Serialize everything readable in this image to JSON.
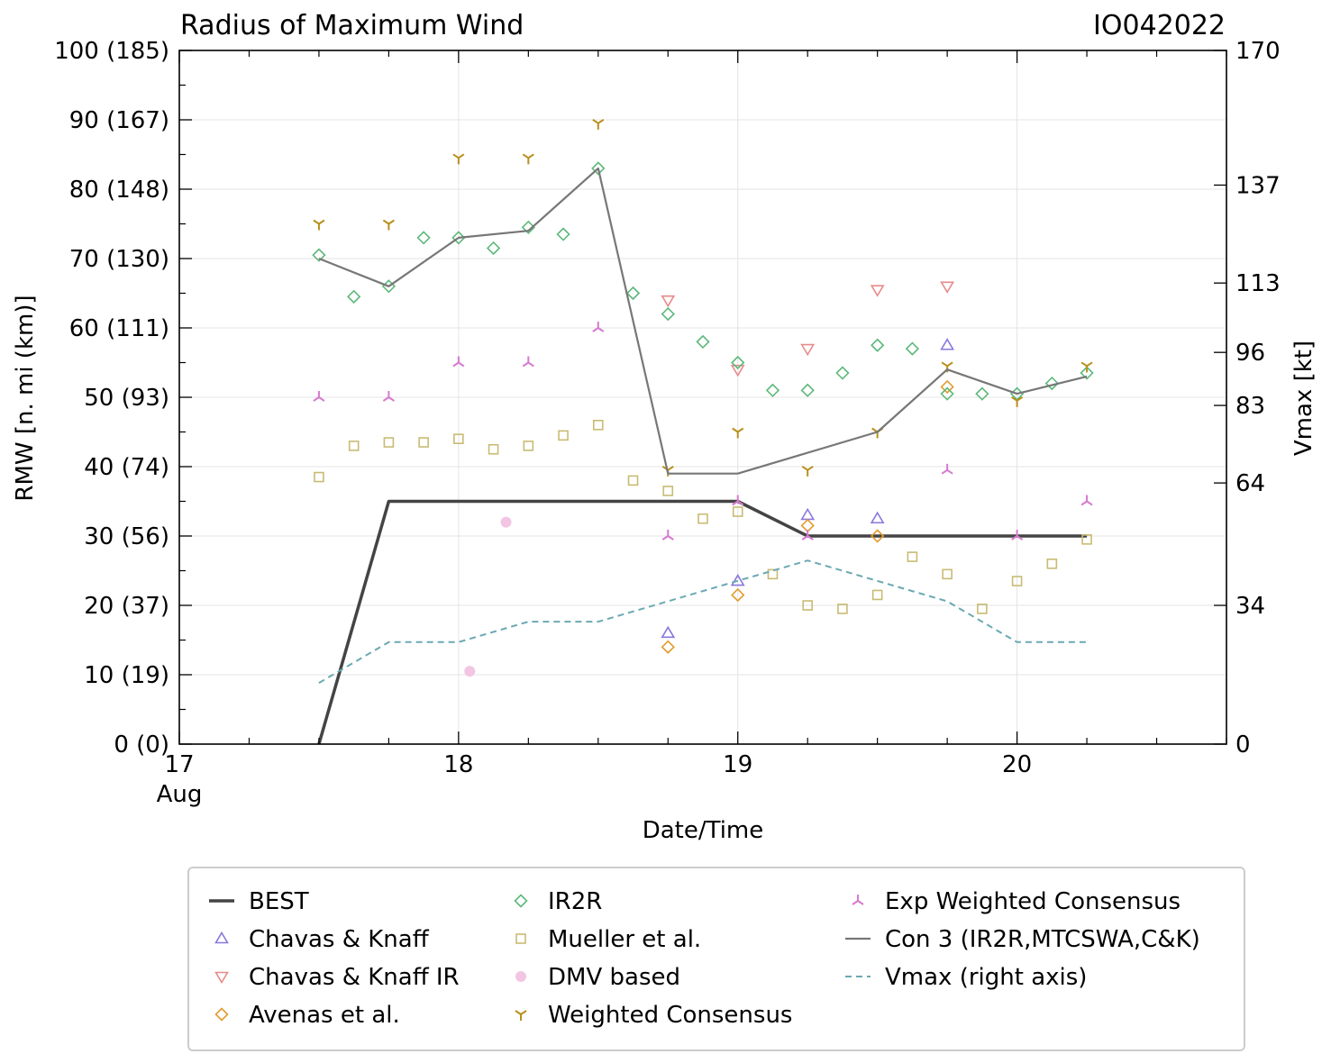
{
  "chart_data": {
    "type": "scatter",
    "title": "Radius of Maximum Wind",
    "storm_id": "IO042022",
    "xlabel": "Date/Time",
    "ylabel": "RMW [n. mi (km)]",
    "y2label": "Vmax [kt]",
    "xlim": [
      17.0,
      20.75
    ],
    "ylim": [
      0,
      100
    ],
    "x_ticks": [
      17,
      18,
      19,
      20
    ],
    "x_tick_labels": [
      "17",
      "18",
      "19",
      "20"
    ],
    "x_sublabel": "Aug",
    "y_ticks": [
      0,
      10,
      20,
      30,
      40,
      50,
      60,
      70,
      80,
      90,
      100
    ],
    "y_tick_labels": [
      "0 (0)",
      "10 (19)",
      "20 (37)",
      "30 (56)",
      "40 (74)",
      "50 (93)",
      "60 (111)",
      "70 (130)",
      "80 (148)",
      "90 (167)",
      "100 (185)"
    ],
    "y2_ticks": [
      0,
      34,
      64,
      83,
      96,
      113,
      137,
      170
    ],
    "y2_tick_labels": [
      "0",
      "34",
      "64",
      "83",
      "96",
      "113",
      "137",
      "170"
    ],
    "y2lim": [
      0,
      170
    ],
    "grid": true,
    "series": [
      {
        "name": "BEST",
        "kind": "line",
        "color": "#444444",
        "width": 3.5,
        "x": [
          17.5,
          17.75,
          19.0,
          19.25,
          20.25
        ],
        "y": [
          0,
          35,
          35,
          30,
          30
        ]
      },
      {
        "name": "Chavas & Knaff",
        "kind": "marker",
        "marker": "tri-up",
        "color": "#8878dc",
        "x": [
          18.75,
          19.0,
          19.25,
          19.5,
          19.75
        ],
        "y": [
          16,
          23.5,
          33,
          32.5,
          57.5
        ]
      },
      {
        "name": "Chavas & Knaff IR",
        "kind": "marker",
        "marker": "tri-down",
        "color": "#e88a8a",
        "x": [
          18.75,
          19.0,
          19.25,
          19.5,
          19.75
        ],
        "y": [
          64,
          54,
          57,
          65.5,
          66
        ]
      },
      {
        "name": "Avenas et al.",
        "kind": "marker",
        "marker": "diamond",
        "color": "#e39a2d",
        "x": [
          18.75,
          19.0,
          19.25,
          19.5,
          19.75
        ],
        "y": [
          14,
          21.5,
          31.5,
          30,
          51.5
        ]
      },
      {
        "name": "IR2R",
        "kind": "marker",
        "marker": "diamond",
        "color": "#5cb87a",
        "x": [
          17.5,
          17.625,
          17.75,
          17.875,
          18.0,
          18.125,
          18.25,
          18.375,
          18.5,
          18.625,
          18.75,
          18.875,
          19.0,
          19.125,
          19.25,
          19.375,
          19.5,
          19.625,
          19.75,
          19.875,
          20.0,
          20.125,
          20.25
        ],
        "y": [
          70.5,
          64.5,
          66,
          73,
          73,
          71.5,
          74.5,
          73.5,
          83,
          65,
          62,
          58,
          55,
          51,
          51,
          53.5,
          57.5,
          57,
          50.5,
          50.5,
          50.5,
          52,
          53.5
        ]
      },
      {
        "name": "Mueller et al.",
        "kind": "marker",
        "marker": "square",
        "color": "#c9bb73",
        "x": [
          17.5,
          17.625,
          17.75,
          17.875,
          18.0,
          18.125,
          18.25,
          18.375,
          18.5,
          18.625,
          18.75,
          18.875,
          19.0,
          19.125,
          19.25,
          19.375,
          19.5,
          19.625,
          19.75,
          19.875,
          20.0,
          20.125,
          20.25
        ],
        "y": [
          38.5,
          43,
          43.5,
          43.5,
          44,
          42.5,
          43,
          44.5,
          46,
          38,
          36.5,
          32.5,
          33.5,
          24.5,
          20,
          19.5,
          21.5,
          27,
          24.5,
          19.5,
          23.5,
          26,
          29.5
        ]
      },
      {
        "name": "DMV based",
        "kind": "marker",
        "marker": "circle",
        "color": "#f2c6e2",
        "x": [
          18.04,
          18.17
        ],
        "y": [
          10.5,
          32
        ]
      },
      {
        "name": "Weighted Consensus",
        "kind": "marker",
        "marker": "tri-y",
        "color": "#b8901c",
        "x": [
          17.5,
          17.75,
          18.0,
          18.25,
          18.5,
          18.75,
          19.0,
          19.25,
          19.5,
          19.75,
          20.0,
          20.25
        ],
        "y": [
          75,
          75,
          84.5,
          84.5,
          89.5,
          39.5,
          45,
          39.5,
          45,
          54.5,
          49.5,
          54.5
        ]
      },
      {
        "name": "Exp Weighted Consensus",
        "kind": "marker",
        "marker": "tri-lambda",
        "color": "#d67ad0",
        "x": [
          17.5,
          17.75,
          18.0,
          18.25,
          18.5,
          18.75,
          19.0,
          19.25,
          19.75,
          20.0,
          20.25
        ],
        "y": [
          50,
          50,
          55,
          55,
          60,
          30,
          35,
          30,
          39.5,
          30,
          35
        ]
      },
      {
        "name": "Con 3 (IR2R,MTCSWA,C&K)",
        "kind": "line",
        "color": "#777777",
        "width": 2.2,
        "x": [
          17.5,
          17.75,
          18.0,
          18.25,
          18.5,
          18.75,
          19.0,
          19.5,
          19.75,
          20.0,
          20.25
        ],
        "y": [
          70,
          66,
          73,
          74,
          83,
          39,
          39,
          45,
          54,
          50.5,
          53
        ]
      },
      {
        "name": "Vmax (right axis)",
        "kind": "line",
        "dashed": true,
        "axis": "right",
        "color": "#6aa9b1",
        "width": 2,
        "x": [
          17.5,
          17.75,
          18.0,
          18.25,
          18.5,
          19.0,
          19.25,
          19.75,
          20.0,
          20.25
        ],
        "y": [
          15,
          25,
          25,
          30,
          30,
          40,
          45,
          35,
          25,
          25
        ]
      }
    ],
    "legend": {
      "placement": "bottom",
      "columns": [
        [
          "BEST",
          "Chavas & Knaff",
          "Chavas & Knaff IR",
          "Avenas et al."
        ],
        [
          "IR2R",
          "Mueller et al.",
          "DMV based",
          "Weighted Consensus"
        ],
        [
          "Exp Weighted Consensus",
          "Con 3 (IR2R,MTCSWA,C&K)",
          "Vmax (right axis)"
        ]
      ]
    }
  }
}
